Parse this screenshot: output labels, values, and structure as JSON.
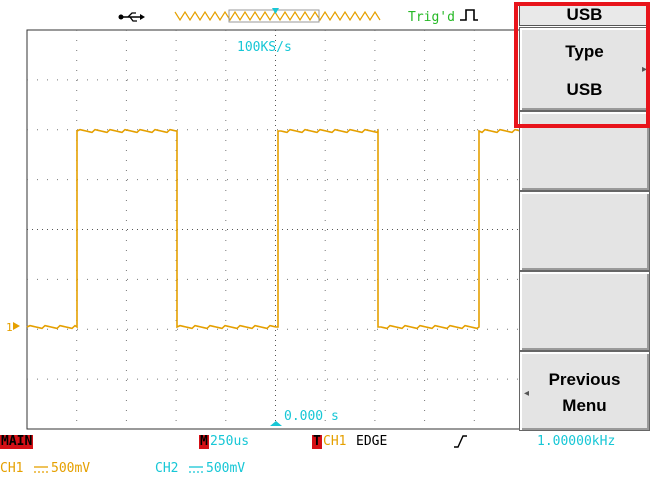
{
  "status_bar": {
    "usb_icon": "usb-connected-icon",
    "trigger_status": "Trig'd",
    "trigger_status_icon": "rising-pulse-icon"
  },
  "display": {
    "sample_rate": "100KS/s",
    "trigger_offset": "0.000 s",
    "ch1_marker": "1"
  },
  "menu": {
    "title": "USB",
    "type_label": "Type",
    "type_value": "USB",
    "type_arrow_icon": "right-arrow-icon",
    "previous_label": "Previous",
    "previous_label2": "Menu",
    "previous_arrow_icon": "left-arrow-icon"
  },
  "bottom_bar": {
    "mode": "MAIN",
    "m_badge": "M",
    "timebase": "250us",
    "t_badge": "T",
    "trigger_source": "CH1",
    "trigger_type": "EDGE",
    "slope_icon": "rising-slope-icon",
    "frequency": "1.00000kHz",
    "ch1_label": "CH1",
    "ch1_coupling_icon": "dc-coupling-icon",
    "ch1_scale": "500mV",
    "ch2_label": "CH2",
    "ch2_coupling_icon": "dc-coupling-icon",
    "ch2_scale": "500mV"
  },
  "colors": {
    "ch1_trace": "#e5a000",
    "cyan": "#17c7d6",
    "trigger_green": "#25b825",
    "mode_red": "#d41016",
    "highlight": "#e8141b"
  }
}
